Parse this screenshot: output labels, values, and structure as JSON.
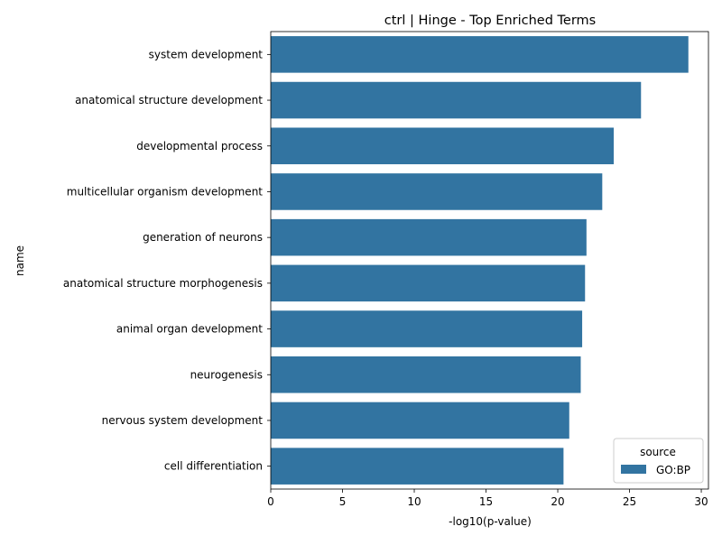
{
  "chart_data": {
    "type": "bar",
    "orientation": "horizontal",
    "title": "ctrl | Hinge - Top Enriched Terms",
    "xlabel": "-log10(p-value)",
    "ylabel": "name",
    "xlim": [
      0,
      30.5
    ],
    "xticks": [
      0,
      5,
      10,
      15,
      20,
      25,
      30
    ],
    "categories": [
      "system development",
      "anatomical structure development",
      "developmental process",
      "multicellular organism development",
      "generation of neurons",
      "anatomical structure morphogenesis",
      "animal organ development",
      "neurogenesis",
      "nervous system development",
      "cell differentiation"
    ],
    "series": [
      {
        "name": "GO:BP",
        "color": "#3274a1",
        "values": [
          29.1,
          25.8,
          23.9,
          23.1,
          22.0,
          21.9,
          21.7,
          21.6,
          20.8,
          20.4
        ]
      }
    ],
    "legend": {
      "title": "source",
      "position": "lower-right"
    },
    "grid": false
  }
}
